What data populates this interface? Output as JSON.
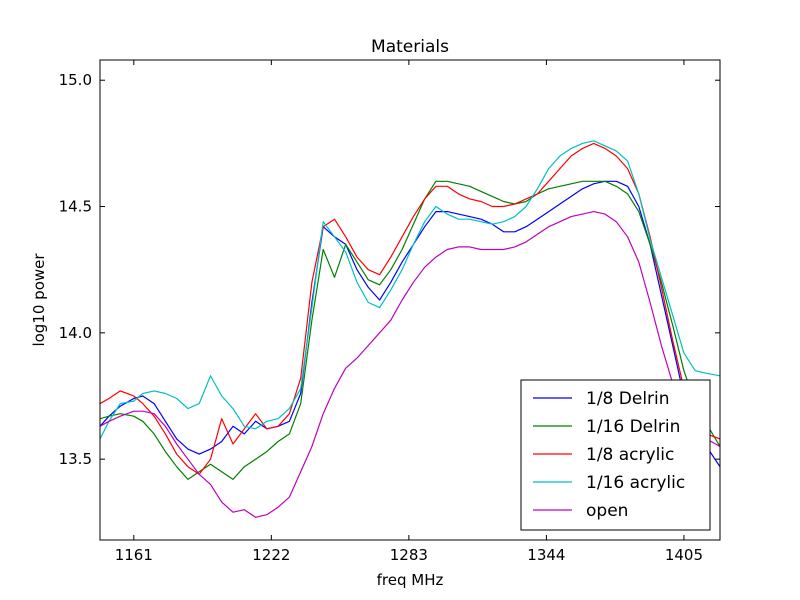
{
  "chart_data": {
    "type": "line",
    "title": "Materials",
    "xlabel": "freq MHz",
    "ylabel": "log10 power",
    "xlim": [
      1146,
      1421
    ],
    "ylim": [
      13.18,
      15.08
    ],
    "xticks": [
      1161,
      1222,
      1283,
      1344,
      1405
    ],
    "xtick_labels": [
      "1161",
      "1222",
      "1283",
      "1344",
      "1405"
    ],
    "yticks": [
      13.5,
      14.0,
      14.5,
      15.0
    ],
    "ytick_labels": [
      "13.5",
      "14.0",
      "14.5",
      "15.0"
    ],
    "grid": false,
    "legend_position": "lower-right",
    "x": [
      1146,
      1150,
      1155,
      1161,
      1165,
      1170,
      1175,
      1180,
      1185,
      1190,
      1195,
      1200,
      1205,
      1210,
      1215,
      1220,
      1225,
      1230,
      1235,
      1240,
      1245,
      1250,
      1255,
      1260,
      1265,
      1270,
      1275,
      1280,
      1285,
      1290,
      1295,
      1300,
      1305,
      1310,
      1315,
      1320,
      1325,
      1330,
      1335,
      1340,
      1345,
      1350,
      1355,
      1360,
      1365,
      1370,
      1375,
      1380,
      1385,
      1390,
      1395,
      1400,
      1405,
      1410,
      1415,
      1421
    ],
    "series": [
      {
        "name": "1/8 Delrin",
        "color": "#0000ff",
        "values": [
          13.63,
          13.67,
          13.71,
          13.74,
          13.75,
          13.72,
          13.65,
          13.58,
          13.54,
          13.52,
          13.54,
          13.57,
          13.63,
          13.6,
          13.65,
          13.62,
          13.63,
          13.65,
          13.76,
          14.12,
          14.42,
          14.38,
          14.35,
          14.25,
          14.18,
          14.13,
          14.2,
          14.28,
          14.35,
          14.42,
          14.48,
          14.48,
          14.47,
          14.46,
          14.45,
          14.43,
          14.4,
          14.4,
          14.42,
          14.45,
          14.48,
          14.51,
          14.54,
          14.57,
          14.59,
          14.6,
          14.6,
          14.58,
          14.5,
          14.35,
          14.15,
          13.95,
          13.75,
          13.62,
          13.55,
          13.47
        ]
      },
      {
        "name": "1/16 Delrin",
        "color": "#008000",
        "values": [
          13.66,
          13.67,
          13.68,
          13.67,
          13.65,
          13.6,
          13.53,
          13.47,
          13.42,
          13.45,
          13.48,
          13.45,
          13.42,
          13.47,
          13.5,
          13.53,
          13.57,
          13.6,
          13.72,
          14.05,
          14.33,
          14.22,
          14.35,
          14.28,
          14.21,
          14.19,
          14.25,
          14.33,
          14.43,
          14.53,
          14.6,
          14.6,
          14.59,
          14.58,
          14.56,
          14.54,
          14.52,
          14.51,
          14.52,
          14.55,
          14.57,
          14.58,
          14.59,
          14.6,
          14.6,
          14.6,
          14.58,
          14.55,
          14.48,
          14.35,
          14.2,
          14.03,
          13.85,
          13.72,
          13.64,
          13.55
        ]
      },
      {
        "name": "1/8 acrylic",
        "color": "#ff0000",
        "values": [
          13.72,
          13.74,
          13.77,
          13.75,
          13.72,
          13.67,
          13.6,
          13.52,
          13.47,
          13.44,
          13.5,
          13.66,
          13.56,
          13.62,
          13.68,
          13.62,
          13.63,
          13.68,
          13.82,
          14.2,
          14.42,
          14.45,
          14.38,
          14.3,
          14.25,
          14.23,
          14.3,
          14.38,
          14.46,
          14.53,
          14.58,
          14.58,
          14.55,
          14.53,
          14.52,
          14.5,
          14.5,
          14.51,
          14.53,
          14.55,
          14.6,
          14.65,
          14.7,
          14.73,
          14.75,
          14.73,
          14.7,
          14.65,
          14.55,
          14.38,
          14.18,
          13.97,
          13.78,
          13.66,
          13.6,
          13.58
        ]
      },
      {
        "name": "1/16 acrylic",
        "color": "#00bfbf",
        "values": [
          13.58,
          13.65,
          13.72,
          13.73,
          13.76,
          13.77,
          13.76,
          13.74,
          13.7,
          13.72,
          13.83,
          13.75,
          13.7,
          13.63,
          13.62,
          13.65,
          13.66,
          13.7,
          13.78,
          14.1,
          14.44,
          14.38,
          14.32,
          14.2,
          14.12,
          14.1,
          14.17,
          14.25,
          14.35,
          14.44,
          14.5,
          14.47,
          14.45,
          14.45,
          14.44,
          14.43,
          14.44,
          14.46,
          14.5,
          14.57,
          14.65,
          14.7,
          14.73,
          14.75,
          14.76,
          14.74,
          14.72,
          14.68,
          14.55,
          14.37,
          14.22,
          14.07,
          13.92,
          13.85,
          13.84,
          13.83
        ]
      },
      {
        "name": "open",
        "color": "#bf00bf",
        "values": [
          13.63,
          13.65,
          13.67,
          13.69,
          13.69,
          13.68,
          13.63,
          13.56,
          13.5,
          13.44,
          13.4,
          13.33,
          13.29,
          13.3,
          13.27,
          13.28,
          13.31,
          13.35,
          13.45,
          13.55,
          13.68,
          13.78,
          13.86,
          13.9,
          13.95,
          14.0,
          14.05,
          14.13,
          14.2,
          14.26,
          14.3,
          14.33,
          14.34,
          14.34,
          14.33,
          14.33,
          14.33,
          14.34,
          14.36,
          14.39,
          14.42,
          14.44,
          14.46,
          14.47,
          14.48,
          14.47,
          14.44,
          14.38,
          14.28,
          14.12,
          13.95,
          13.8,
          13.68,
          13.62,
          13.58,
          13.55
        ]
      }
    ]
  }
}
